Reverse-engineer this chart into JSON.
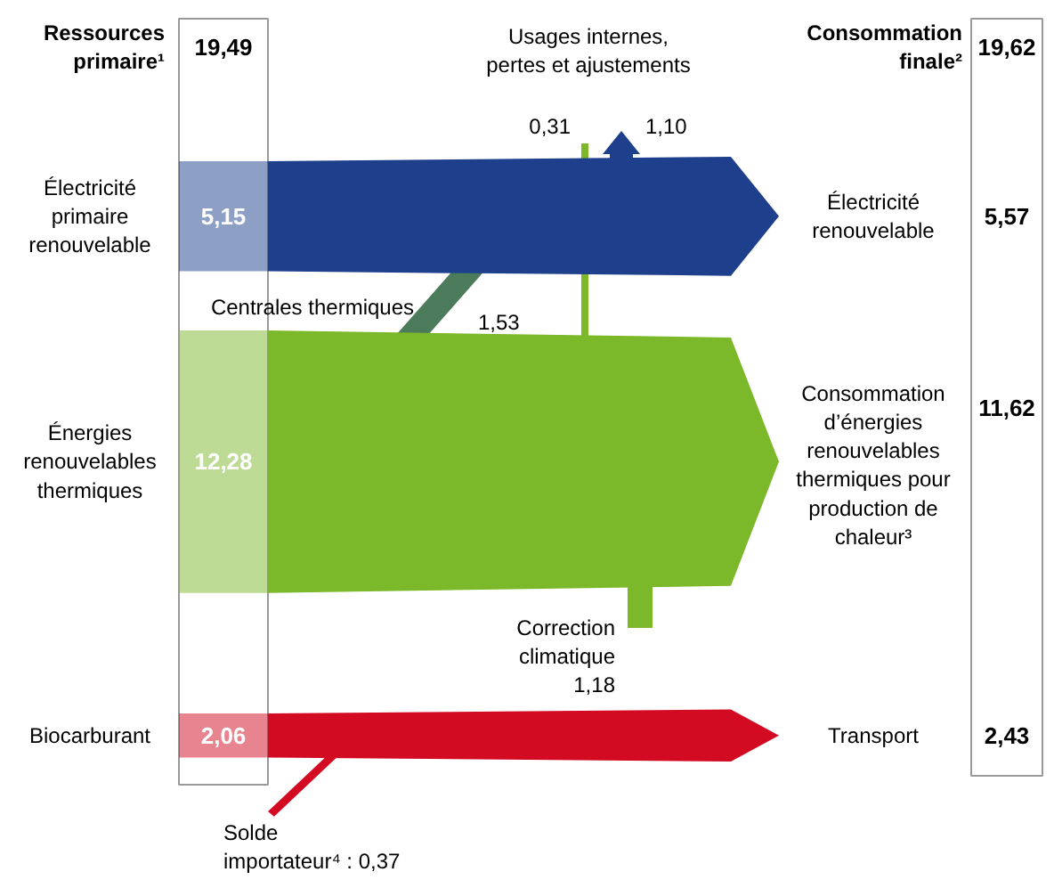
{
  "chart_data": {
    "type": "other",
    "annotations": [
      "Ressources primaire¹",
      "19,49",
      "19,62",
      "Électricité renouvelable",
      "Consommation d’énergies renouvelables thermiques pour production de chaleur³",
      "Transport",
      "Usages internes, pertes et ajustements",
      "0,31",
      "1,10",
      "Centrales thermiques",
      "1,53",
      "Correction climatique",
      "1,18",
      "Solde importateur⁴ : 0,37"
    ],
    "categories": [
      "Électricité primaire renouvelable",
      "Énergies renouvelables thermiques",
      "Biocarburant"
    ],
    "values": [
      5.15,
      12.28,
      2.06
    ],
    "value_labels": [
      "5,15",
      "12,28",
      "2,06"
    ],
    "colors": [
      "#1d3f8c",
      "#7bb82a",
      "#d20a22"
    ],
    "series": [
      {
        "name": "Consommation finale²",
        "colors": [
          "#1d3f8c",
          "#7bb82a",
          "#d20a22"
        ],
        "values": [
          5.57,
          11.62,
          2.43
        ],
        "value_labels": [
          "5,57",
          "11,62",
          "2,43"
        ]
      }
    ]
  }
}
